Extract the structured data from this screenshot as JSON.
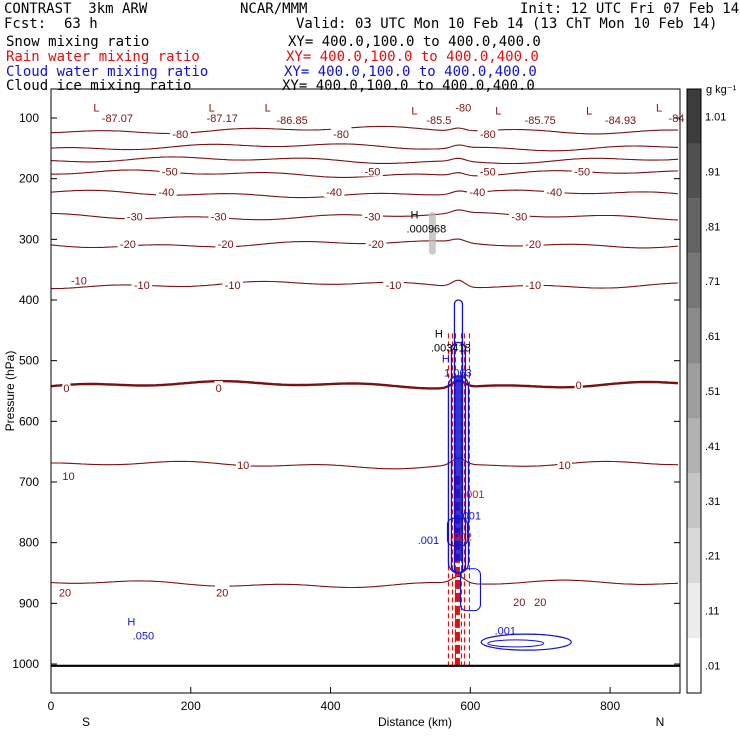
{
  "header": {
    "model": "CONTRAST  3km ARW",
    "center": "NCAR/MMM",
    "init": "Init: 12 UTC Fri 07 Feb 14",
    "fcst_label": "Fcst:",
    "fcst_value": "63 h",
    "valid": "Valid: 03 UTC Mon 10 Feb 14 (13 ChT Mon 10 Feb 14)"
  },
  "fields": [
    {
      "name": "Snow mixing ratio",
      "xy": "XY= 400.0,100.0 to 400.0,400.0",
      "color": "#000000"
    },
    {
      "name": "Rain water mixing ratio",
      "xy": "XY= 400.0,100.0 to 400.0,400.0",
      "color": "#e01010"
    },
    {
      "name": "Cloud water mixing ratio",
      "xy": "XY= 400.0,100.0 to 400.0,400.0",
      "color": "#1010d0"
    },
    {
      "name": "Cloud ice mixing ratio",
      "xy": "XY= 400.0,100.0 to 400.0,400.0",
      "color": "#000000"
    }
  ],
  "chart_data": {
    "type": "contour cross-section",
    "xlabel": "Distance (km)",
    "ylabel": "Pressure (hPa)",
    "xlim": [
      0,
      900
    ],
    "ylim": [
      1045,
      60
    ],
    "x_ticks": [
      0,
      200,
      400,
      600,
      800
    ],
    "y_ticks": [
      100,
      200,
      300,
      400,
      500,
      600,
      700,
      800,
      900,
      1000
    ],
    "direction_left": "S",
    "direction_right": "N",
    "colorbar": {
      "units": "g kg⁻¹",
      "levels": [
        "1.01",
        ".91",
        ".81",
        ".71",
        ".61",
        ".51",
        ".41",
        ".31",
        ".21",
        ".11",
        ".01"
      ]
    },
    "temperature_contours_C": [
      {
        "value": -80,
        "p": 120
      },
      {
        "value": -70,
        "p": 148
      },
      {
        "value": -60,
        "p": 170
      },
      {
        "value": -50,
        "p": 192
      },
      {
        "value": -40,
        "p": 225
      },
      {
        "value": -30,
        "p": 262
      },
      {
        "value": -20,
        "p": 308
      },
      {
        "value": -10,
        "p": 375
      },
      {
        "value": 0,
        "p": 540
      },
      {
        "value": 10,
        "p": 672
      },
      {
        "value": 20,
        "p": 868
      }
    ],
    "temperature_labels": [
      {
        "text": "-87.07",
        "x": 95,
        "p": 100
      },
      {
        "text": "-87.17",
        "x": 245,
        "p": 100
      },
      {
        "text": "-86.85",
        "x": 345,
        "p": 103
      },
      {
        "text": "-85.5",
        "x": 555,
        "p": 103
      },
      {
        "text": "-85.75",
        "x": 700,
        "p": 103
      },
      {
        "text": "-84.93",
        "x": 815,
        "p": 103
      },
      {
        "text": "-84",
        "x": 895,
        "p": 100
      },
      {
        "text": "-80",
        "x": 590,
        "p": 83
      },
      {
        "text": "-80",
        "x": 185,
        "p": 126
      },
      {
        "text": "-80",
        "x": 415,
        "p": 126
      },
      {
        "text": "-80",
        "x": 625,
        "p": 126
      },
      {
        "text": "-50",
        "x": 170,
        "p": 188
      },
      {
        "text": "-50",
        "x": 460,
        "p": 188
      },
      {
        "text": "-50",
        "x": 625,
        "p": 188
      },
      {
        "text": "-50",
        "x": 760,
        "p": 188
      },
      {
        "text": "-40",
        "x": 165,
        "p": 222
      },
      {
        "text": "-40",
        "x": 405,
        "p": 222
      },
      {
        "text": "-40",
        "x": 610,
        "p": 222
      },
      {
        "text": "-40",
        "x": 720,
        "p": 222
      },
      {
        "text": "-30",
        "x": 120,
        "p": 262
      },
      {
        "text": "-30",
        "x": 240,
        "p": 262
      },
      {
        "text": "-30",
        "x": 460,
        "p": 262
      },
      {
        "text": "-30",
        "x": 670,
        "p": 262
      },
      {
        "text": "-20",
        "x": 110,
        "p": 308
      },
      {
        "text": "-20",
        "x": 250,
        "p": 308
      },
      {
        "text": "-20",
        "x": 465,
        "p": 308
      },
      {
        "text": "-20",
        "x": 690,
        "p": 308
      },
      {
        "text": "-10",
        "x": 40,
        "p": 368
      },
      {
        "text": "-10",
        "x": 130,
        "p": 375
      },
      {
        "text": "-10",
        "x": 260,
        "p": 375
      },
      {
        "text": "-10",
        "x": 490,
        "p": 375
      },
      {
        "text": "-10",
        "x": 690,
        "p": 375
      },
      {
        "text": "0",
        "x": 22,
        "p": 545
      },
      {
        "text": "0",
        "x": 240,
        "p": 545
      },
      {
        "text": "0",
        "x": 755,
        "p": 540
      },
      {
        "text": "10",
        "x": 25,
        "p": 690
      },
      {
        "text": "10",
        "x": 275,
        "p": 672
      },
      {
        "text": "10",
        "x": 735,
        "p": 672
      },
      {
        "text": "20",
        "x": 20,
        "p": 882
      },
      {
        "text": "20",
        "x": 245,
        "p": 882
      },
      {
        "text": "20",
        "x": 670,
        "p": 898
      },
      {
        "text": "20",
        "x": 700,
        "p": 898
      }
    ],
    "lows": [
      {
        "text": "L",
        "x": 65,
        "p": 83
      },
      {
        "text": "L",
        "x": 230,
        "p": 83
      },
      {
        "text": "L",
        "x": 310,
        "p": 83
      },
      {
        "text": "L",
        "x": 520,
        "p": 88
      },
      {
        "text": "L",
        "x": 640,
        "p": 88
      },
      {
        "text": "L",
        "x": 770,
        "p": 88
      },
      {
        "text": "L",
        "x": 870,
        "p": 83
      }
    ],
    "highs": [
      {
        "text": "H",
        "x": 520,
        "p": 272,
        "value": ".000968",
        "color": "#000000"
      },
      {
        "text": "H",
        "x": 555,
        "p": 468,
        "value": ".003418",
        "color": "#000000"
      },
      {
        "text": "H",
        "x": 565,
        "p": 510,
        "value": "1.063",
        "color": "#1010d0"
      },
      {
        "text": "H",
        "x": 115,
        "p": 943,
        "value": ".050",
        "color": "#1010d0"
      }
    ],
    "cloud_water_labels": [
      {
        "text": ".001",
        "x": 600,
        "p": 755,
        "color": "#1010d0"
      },
      {
        "text": ".001",
        "x": 540,
        "p": 796,
        "color": "#1010d0"
      },
      {
        "text": ".001",
        "x": 650,
        "p": 945,
        "color": "#1010d0"
      },
      {
        "text": ".001",
        "x": 605,
        "p": 720,
        "color": "#e01010"
      },
      {
        "text": ".002",
        "x": 587,
        "p": 790,
        "color": "#e01010"
      }
    ],
    "snow_core": {
      "x": 545,
      "p_top": 255,
      "p_bottom": 325,
      "max": 0.06
    },
    "convective_core_x": 583
  }
}
